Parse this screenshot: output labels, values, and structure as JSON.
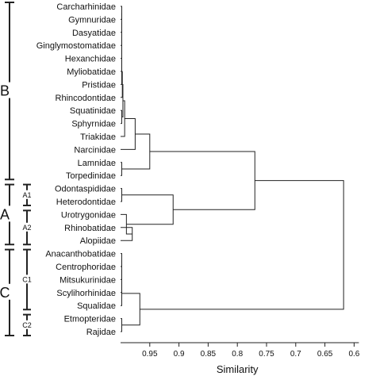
{
  "chart_data": {
    "type": "dendrogram",
    "xlabel": "Similarity",
    "xlim": [
      1.0,
      0.6
    ],
    "xticks": [
      "0.95",
      "0.9",
      "0.85",
      "0.8",
      "0.75",
      "0.7",
      "0.65",
      "0.6"
    ],
    "xtick_values": [
      0.95,
      0.9,
      0.85,
      0.8,
      0.75,
      0.7,
      0.65,
      0.6
    ],
    "leaves": [
      "Carcharhinidae",
      "Gymnuridae",
      "Dasyatidae",
      "Ginglymostomatidae",
      "Hexanchidae",
      "Myliobatidae",
      "Pristidae",
      "Rhincodontidae",
      "Squatinidae",
      "Sphyrnidae",
      "Triakidae",
      "Narcinidae",
      "Lamnidae",
      "Torpedinidae",
      "Odontaspididae",
      "Heterodontidae",
      "Urotrygonidae",
      "Rhinobatidae",
      "Alopiidae",
      "Anacanthobatidae",
      "Centrophoridae",
      "Mitsukurinidae",
      "Scylihorhinidae",
      "Squalidae",
      "Etmopteridae",
      "Rajidae"
    ],
    "merges": [
      {
        "left": 0,
        "right": 1,
        "height": 0.998
      },
      {
        "left": "m0",
        "right": 2,
        "height": 0.998
      },
      {
        "left": "m1",
        "right": 3,
        "height": 0.998
      },
      {
        "left": "m2",
        "right": 4,
        "height": 0.998
      },
      {
        "left": "m3",
        "right": 5,
        "height": 0.998
      },
      {
        "left": "m4",
        "right": 6,
        "height": 0.998
      },
      {
        "left": "m5",
        "right": 7,
        "height": 0.997
      },
      {
        "left": 8,
        "right": 9,
        "height": 0.998
      },
      {
        "left": "m6",
        "right": "m7",
        "height": 0.996
      },
      {
        "left": "m8",
        "right": 10,
        "height": 0.993
      },
      {
        "left": "m9",
        "right": 11,
        "height": 0.975
      },
      {
        "left": 12,
        "right": 13,
        "height": 0.998
      },
      {
        "left": "m10",
        "right": "m11",
        "height": 0.95
      },
      {
        "left": 14,
        "right": 15,
        "height": 0.998
      },
      {
        "left": 17,
        "right": 18,
        "height": 0.98
      },
      {
        "left": 16,
        "right": "m14",
        "height": 0.99
      },
      {
        "left": "m13",
        "right": "m15",
        "height": 0.91
      },
      {
        "left": "m12",
        "right": "m16",
        "height": 0.77
      },
      {
        "left": 19,
        "right": 20,
        "height": 0.998
      },
      {
        "left": "m18",
        "right": 21,
        "height": 0.998
      },
      {
        "left": "m19",
        "right": 22,
        "height": 0.998
      },
      {
        "left": "m20",
        "right": 23,
        "height": 0.998
      },
      {
        "left": 24,
        "right": 25,
        "height": 0.998
      },
      {
        "left": "m21",
        "right": "m22",
        "height": 0.967
      },
      {
        "left": "m17",
        "right": "m23",
        "height": 0.618
      }
    ],
    "groups": [
      {
        "label": "B",
        "from": 0,
        "to": 13,
        "level": "major"
      },
      {
        "label": "A",
        "from": 14,
        "to": 18,
        "level": "major"
      },
      {
        "label": "A1",
        "from": 14,
        "to": 15,
        "level": "sub"
      },
      {
        "label": "A2",
        "from": 16,
        "to": 18,
        "level": "sub"
      },
      {
        "label": "C",
        "from": 19,
        "to": 25,
        "level": "major"
      },
      {
        "label": "C1",
        "from": 19,
        "to": 23,
        "level": "sub"
      },
      {
        "label": "C2",
        "from": 24,
        "to": 25,
        "level": "sub"
      }
    ],
    "grid": false
  }
}
